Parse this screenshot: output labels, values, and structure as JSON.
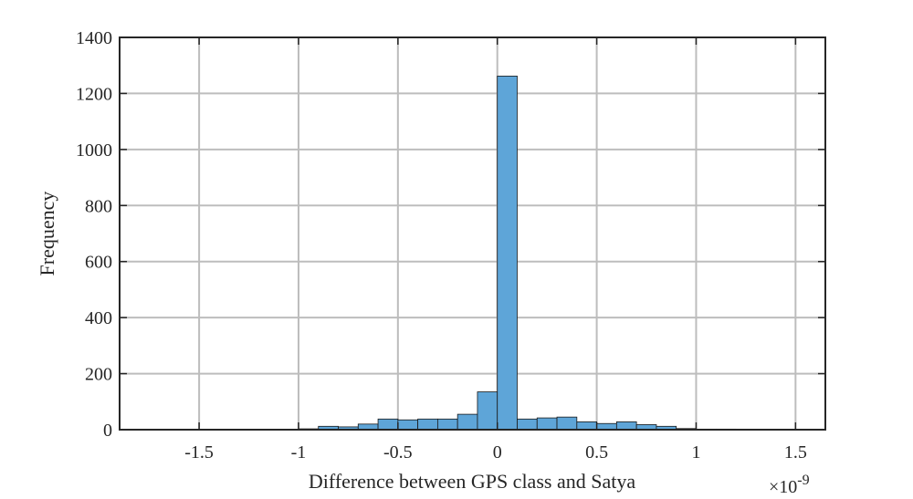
{
  "chart_data": {
    "type": "bar",
    "subtype": "histogram",
    "xlabel": "Difference between GPS class and Satya",
    "ylabel": "Frequency",
    "x_multiplier_label": "×10",
    "x_multiplier_exponent": "-9",
    "xlim": [
      -1.9,
      1.65
    ],
    "ylim": [
      0,
      1400
    ],
    "xticks": [
      -1.5,
      -1,
      -0.5,
      0,
      0.5,
      1,
      1.5
    ],
    "xtick_labels": [
      "-1.5",
      "-1",
      "-0.5",
      "0",
      "0.5",
      "1",
      "1.5"
    ],
    "yticks": [
      0,
      200,
      400,
      600,
      800,
      1000,
      1200,
      1400
    ],
    "ytick_labels": [
      "0",
      "200",
      "400",
      "600",
      "800",
      "1000",
      "1200",
      "1400"
    ],
    "grid": true,
    "bar_color": "#5ea5d8",
    "bar_edge_color": "#1a1a1a",
    "bin_edges": [
      -1.9,
      -1.8,
      -1.7,
      -1.6,
      -1.5,
      -1.4,
      -1.3,
      -1.2,
      -1.1,
      -1.0,
      -0.9,
      -0.8,
      -0.7,
      -0.6,
      -0.5,
      -0.4,
      -0.3,
      -0.2,
      -0.1,
      0.0,
      0.1,
      0.2,
      0.3,
      0.4,
      0.5,
      0.6,
      0.7,
      0.8,
      0.9,
      1.0,
      1.1,
      1.2,
      1.3,
      1.4,
      1.5,
      1.6
    ],
    "counts": [
      1,
      1,
      1,
      1,
      1,
      1,
      1,
      1,
      1,
      3,
      12,
      10,
      20,
      38,
      35,
      38,
      38,
      55,
      135,
      1262,
      38,
      42,
      45,
      28,
      22,
      28,
      18,
      12,
      4,
      2,
      2,
      1,
      1,
      1,
      1
    ]
  }
}
